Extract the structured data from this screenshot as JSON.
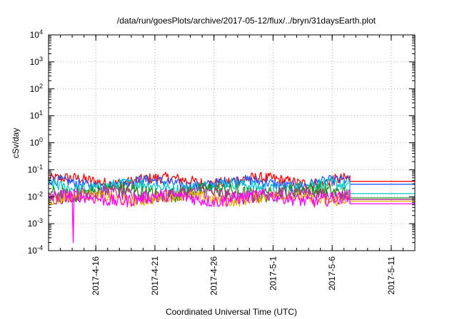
{
  "chart_data": {
    "type": "line",
    "title": "/data/run/goesPlots/archive/2017-05-12/flux/../bryn/31daysEarth.plot",
    "xlabel": "Coordinated Universal Time (UTC)",
    "ylabel": "cSv/day",
    "yscale": "log",
    "ylim": [
      0.0001,
      10000
    ],
    "xlim": [
      "2017-04-12",
      "2017-05-13"
    ],
    "grid": true,
    "legend": "none",
    "x_ticks": [
      "2017-4-16",
      "2017-4-21",
      "2017-4-26",
      "2017-5-1",
      "2017-5-6",
      "2017-5-11"
    ],
    "y_ticks": [
      {
        "value": 0.0001,
        "base": "10",
        "exp": "-4"
      },
      {
        "value": 0.001,
        "base": "10",
        "exp": "-3"
      },
      {
        "value": 0.01,
        "base": "10",
        "exp": "-2"
      },
      {
        "value": 0.1,
        "base": "10",
        "exp": "-1"
      },
      {
        "value": 1,
        "base": "10",
        "exp": "0"
      },
      {
        "value": 10,
        "base": "10",
        "exp": "1"
      },
      {
        "value": 100,
        "base": "10",
        "exp": "2"
      },
      {
        "value": 1000,
        "base": "10",
        "exp": "3"
      },
      {
        "value": 10000,
        "base": "10",
        "exp": "4"
      }
    ],
    "data_end": "2017-05-07T12:00",
    "series": [
      {
        "color": "#ff0000",
        "level": 0.04,
        "last_value": 0.037,
        "variation": 1.5
      },
      {
        "color": "#1f5fff",
        "level": 0.033,
        "last_value": 0.029,
        "variation": 1.45
      },
      {
        "color": "#00c8c8",
        "level": 0.025,
        "last_value": 0.013,
        "variation": 1.5
      },
      {
        "color": "#1e8c1e",
        "level": 0.015,
        "last_value": 0.009,
        "variation": 1.7
      },
      {
        "color": "#b4328c",
        "level": 0.012,
        "last_value": 0.0078,
        "variation": 1.6
      },
      {
        "color": "#e6b400",
        "level": 0.009,
        "last_value": 0.0068,
        "variation": 1.5
      },
      {
        "color": "#ff00ff",
        "level": 0.009,
        "last_value": 0.0055,
        "variation": 1.6,
        "dip": {
          "x": "2017-04-14T02:00",
          "y": 0.0002
        }
      }
    ]
  }
}
